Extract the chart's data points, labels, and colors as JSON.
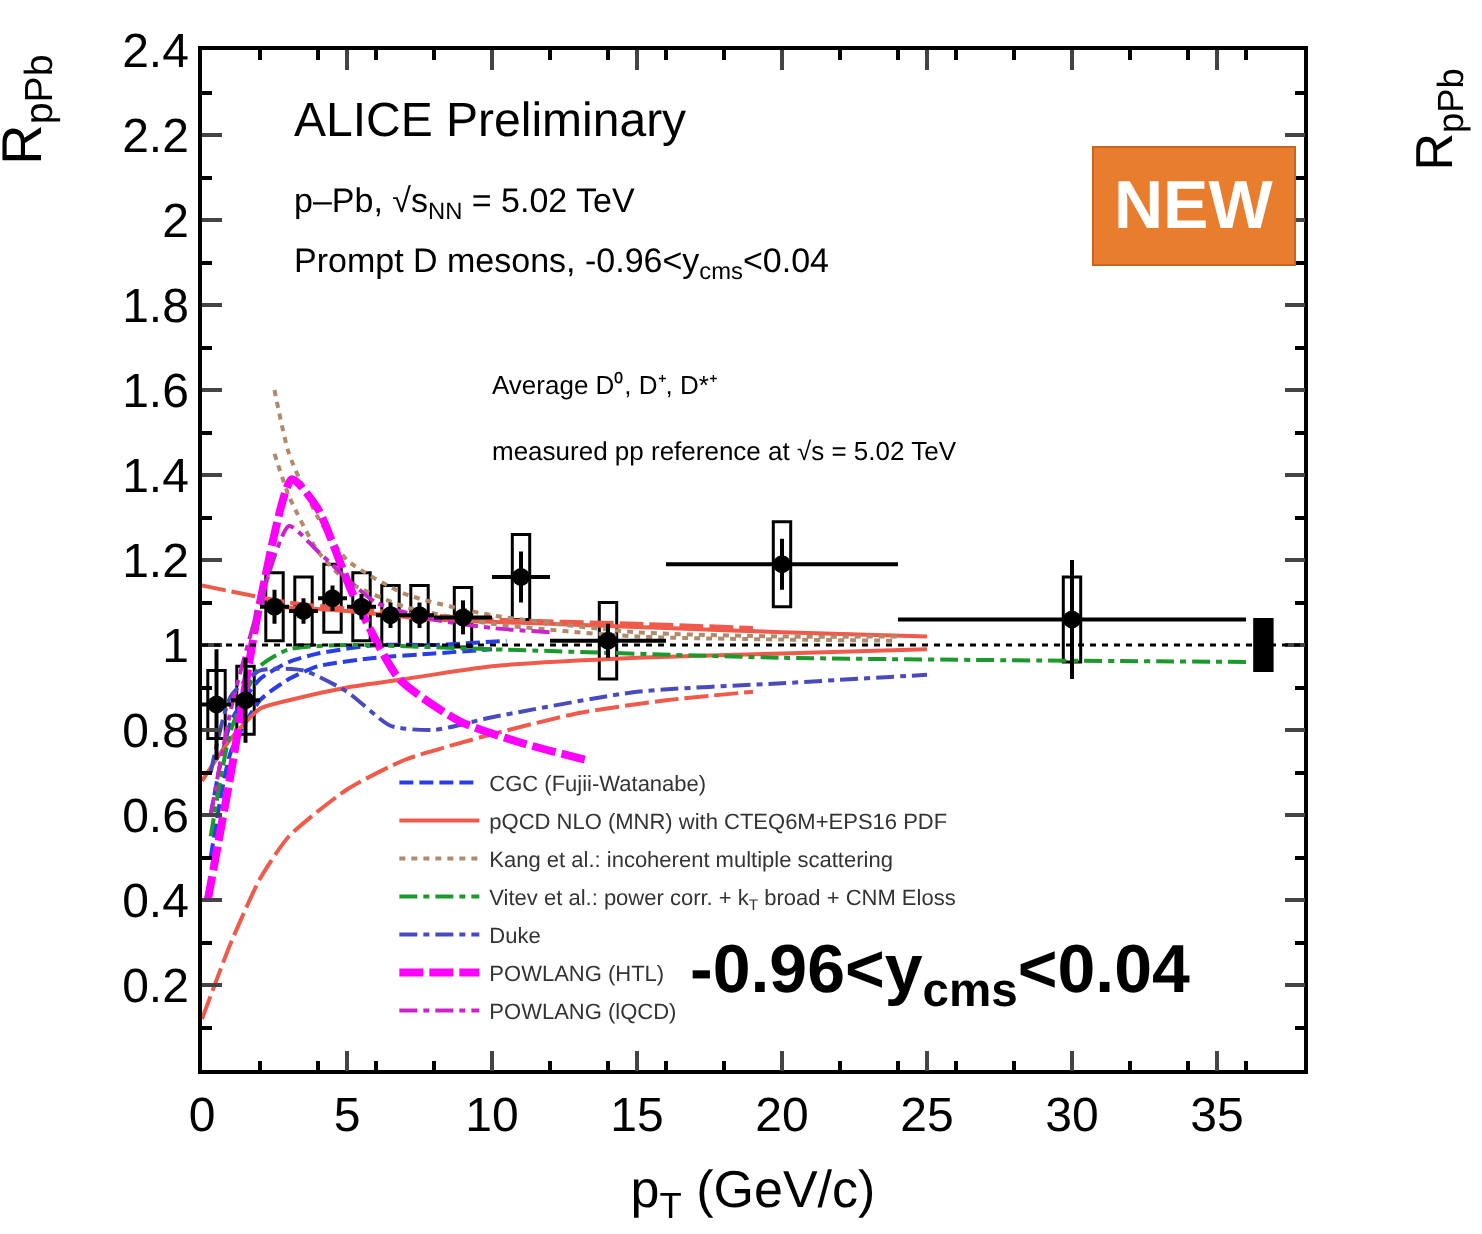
{
  "chart_data": {
    "type": "scatter",
    "xlabel": "p$_{T}$ (GeV/c)",
    "ylabel": "R$_{pPb}$",
    "xlim": [
      0,
      38
    ],
    "ylim": [
      0,
      2.4
    ],
    "xticks": [
      0,
      5,
      10,
      15,
      20,
      25,
      30,
      35
    ],
    "yticks": [
      {
        "value": 0.2,
        "label": "0.2"
      },
      {
        "value": 0.4,
        "label": "0.4"
      },
      {
        "value": 0.6,
        "label": "0.6"
      },
      {
        "value": 0.8,
        "label": "0.8"
      },
      {
        "value": 1,
        "label": "1"
      },
      {
        "value": 1.2,
        "label": "1.2"
      },
      {
        "value": 1.4,
        "label": "1.4"
      },
      {
        "value": 1.6,
        "label": "1.6"
      },
      {
        "value": 1.8,
        "label": "1.8"
      },
      {
        "value": 2,
        "label": "2"
      },
      {
        "value": 2.2,
        "label": "2.2"
      },
      {
        "value": 2.4,
        "label": "2.4"
      }
    ],
    "legend": "bottom left",
    "ref_lines": [
      {
        "axis": "y",
        "value": 1,
        "label": null,
        "color": "#000000",
        "line_style": "dotted"
      }
    ],
    "series": [
      {
        "type": "line",
        "name": "CGC (Fujii-Watanabe)",
        "color": "#2a3ee8",
        "line_style": "dashed",
        "x": [
          0.3,
          1,
          2,
          3,
          4,
          6,
          8,
          10.5
        ],
        "values": [
          0.6,
          0.82,
          0.92,
          0.96,
          0.98,
          1.0,
          1.0,
          1.01
        ]
      },
      {
        "type": "line",
        "color": "#2a3ee8",
        "line_style": "dashed",
        "x": [
          0.3,
          1,
          2,
          3,
          4,
          6,
          8,
          10
        ],
        "values": [
          0.5,
          0.75,
          0.87,
          0.92,
          0.95,
          0.97,
          0.98,
          0.99
        ]
      },
      {
        "type": "line",
        "name": "pQCD NLO (MNR) with CTEQ6M+EPS16 PDF",
        "color": "#f05a4a",
        "line_style": "solid",
        "x": [
          2.5,
          5,
          8,
          12,
          16,
          20,
          25
        ],
        "values": [
          1.09,
          1.08,
          1.06,
          1.05,
          1.04,
          1.03,
          1.02
        ]
      },
      {
        "type": "line",
        "color": "#f05a4a",
        "line_style": "solid",
        "x": [
          0,
          1,
          2,
          3,
          5,
          7,
          10,
          15,
          20,
          25
        ],
        "values": [
          0.68,
          0.78,
          0.85,
          0.87,
          0.9,
          0.92,
          0.95,
          0.97,
          0.98,
          0.99
        ]
      },
      {
        "type": "line",
        "color": "#f05a4a",
        "line_style": "longdash",
        "x": [
          0,
          3,
          6,
          10,
          15,
          19
        ],
        "values": [
          1.14,
          1.1,
          1.08,
          1.06,
          1.05,
          1.04
        ]
      },
      {
        "type": "line",
        "color": "#f05a4a",
        "line_style": "longdash",
        "x": [
          0,
          1,
          2,
          3,
          5,
          7,
          10,
          13,
          16,
          19
        ],
        "values": [
          0.12,
          0.3,
          0.45,
          0.55,
          0.66,
          0.73,
          0.79,
          0.84,
          0.87,
          0.89
        ]
      },
      {
        "type": "line",
        "name": "Kang et al.: incoherent multiple scattering",
        "color": "#b08a6a",
        "line_style": "dotted",
        "x": [
          2.5,
          3,
          4,
          5,
          7,
          10,
          15,
          20,
          24
        ],
        "values": [
          1.6,
          1.45,
          1.3,
          1.2,
          1.12,
          1.07,
          1.03,
          1.02,
          1.02
        ]
      },
      {
        "type": "line",
        "color": "#b08a6a",
        "line_style": "dotted",
        "x": [
          2.5,
          3,
          4,
          5,
          7,
          10,
          15,
          24
        ],
        "values": [
          1.45,
          1.35,
          1.22,
          1.15,
          1.09,
          1.05,
          1.02,
          1.01
        ]
      },
      {
        "type": "line",
        "name": "Vitev et al.: power corr. + k$_{T}$ broad + CNM Eloss",
        "color": "#1a9a2a",
        "line_style": "dashdot",
        "x": [
          0.3,
          1,
          2,
          3,
          5,
          10,
          20,
          36
        ],
        "values": [
          0.55,
          0.8,
          0.95,
          0.99,
          1.0,
          0.99,
          0.97,
          0.96
        ]
      },
      {
        "type": "line",
        "name": "Duke",
        "color": "#4a4ac0",
        "line_style": "dashdot",
        "x": [
          0.3,
          1,
          2,
          3.5,
          5,
          6.5,
          8,
          10,
          15,
          20,
          25
        ],
        "values": [
          0.7,
          0.88,
          0.94,
          0.94,
          0.89,
          0.81,
          0.8,
          0.83,
          0.89,
          0.91,
          0.93
        ]
      },
      {
        "type": "line",
        "name": "POWLANG (HTL)",
        "color": "#ff00ff",
        "line_style": "longdash",
        "x": [
          0.2,
          1,
          2,
          3.1,
          4,
          5.2,
          6.8,
          8.9,
          11,
          13.2
        ],
        "values": [
          0.4,
          0.7,
          1.1,
          1.39,
          1.32,
          1.12,
          0.92,
          0.82,
          0.77,
          0.73
        ]
      },
      {
        "type": "line",
        "name": "POWLANG (lQCD)",
        "color": "#cc22cc",
        "line_style": "dashdot",
        "x": [
          0.3,
          1,
          2,
          3,
          4,
          6,
          8,
          10,
          12
        ],
        "values": [
          0.6,
          0.85,
          1.1,
          1.28,
          1.22,
          1.1,
          1.06,
          1.04,
          1.03
        ]
      },
      {
        "type": "bar",
        "color": null,
        "x": [
          0.5,
          1.5,
          2.5,
          3.5,
          4.5,
          5.5,
          6.5,
          7.5,
          9,
          11,
          14,
          20,
          30
        ],
        "base": [
          0.78,
          0.79,
          1.01,
          1.0,
          1.03,
          1.01,
          1.0,
          1.0,
          0.995,
          1.06,
          0.92,
          1.09,
          0.96
        ],
        "values": [
          0.16,
          0.16,
          0.16,
          0.16,
          0.16,
          0.16,
          0.14,
          0.14,
          0.14,
          0.2,
          0.18,
          0.2,
          0.2
        ]
      },
      {
        "type": "bar",
        "color": "#000000",
        "x": [
          36.6
        ],
        "base": [
          0.94
        ],
        "values": [
          0.12
        ]
      },
      {
        "color": "#000000",
        "marker": "circle",
        "x": [
          0.5,
          1.5,
          2.5,
          3.5,
          4.5,
          5.5,
          6.5,
          7.5,
          9,
          11,
          14,
          20,
          30
        ],
        "values": [
          0.86,
          0.87,
          1.09,
          1.08,
          1.11,
          1.09,
          1.07,
          1.07,
          1.065,
          1.16,
          1.01,
          1.19,
          1.06
        ],
        "errors": [
          0.13,
          0.1,
          0.04,
          0.03,
          0.03,
          0.03,
          0.03,
          0.03,
          0.04,
          0.06,
          0.04,
          0.06,
          0.14
        ],
        "xerrors": [
          0.5,
          0.5,
          0.5,
          0.5,
          0.5,
          0.5,
          0.5,
          0.5,
          1,
          1,
          2,
          4,
          6
        ]
      }
    ],
    "annotations": [
      "ALICE Preliminary",
      "p–Pb, √s$_{NN}$ = 5.02 TeV",
      "Prompt D mesons, -0.96<y$_{cms}$<0.04",
      "Average D⁰, D⁺, D*⁺",
      "measured pp reference at √s = 5.02 TeV",
      "-0.96<y$_{cms}$<0.04",
      "NEW",
      "R$_{pPb}$"
    ]
  }
}
